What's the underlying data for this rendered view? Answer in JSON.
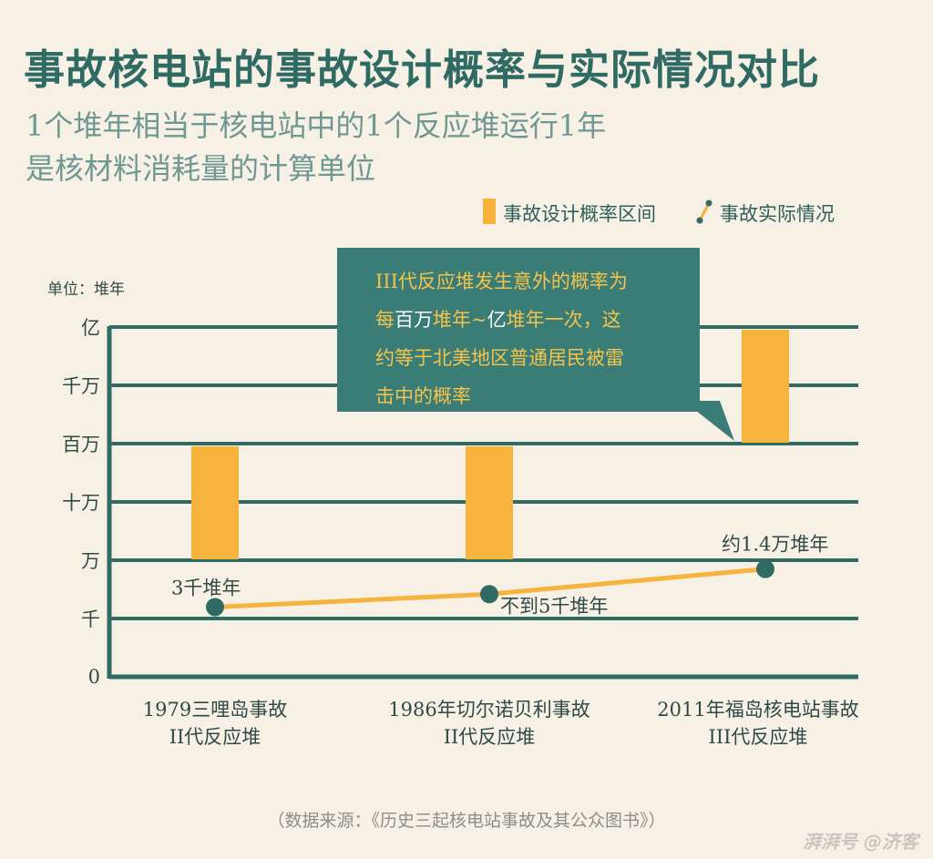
{
  "title": "事故核电站的事故设计概率与实际情况对比",
  "subtitle_line1": "1个堆年相当于核电站中的1个反应堆运行1年",
  "subtitle_line2": "是核材料消耗量的计算单位",
  "legend": {
    "design_range": "事故设计概率区间",
    "actual": "事故实际情况"
  },
  "unit_label": "单位：堆年",
  "callout": {
    "p1": "III代反应堆发生意外的概率为",
    "p2a": "每",
    "p2b": "百万",
    "p2c": "堆年~",
    "p2d": "亿",
    "p2e": "堆年一次，这",
    "p3": "约等于北美地区普通居民被雷",
    "p4": "击中的概率"
  },
  "source": "（数据来源：《历史三起核电站事故及其公众图书》）",
  "watermark": "湃湃号 @济客",
  "colors": {
    "background": "#f7f1e5",
    "grid": "#2f6a63",
    "bar": "#f6b33e",
    "line": "#f6b33e",
    "point": "#2f6a63",
    "callout_bg": "#3a7c76"
  },
  "chart_data": {
    "type": "bar",
    "ylabel": "单位：堆年",
    "y_scale": "log",
    "y_ticks": [
      "0",
      "千",
      "万",
      "十万",
      "百万",
      "千万",
      "亿"
    ],
    "categories": [
      [
        "1979三哩岛事故",
        "II代反应堆"
      ],
      [
        "1986年切尔诺贝利事故",
        "II代反应堆"
      ],
      [
        "2011年福岛核电站事故",
        "III代反应堆"
      ]
    ],
    "series": [
      {
        "name": "事故设计概率区间",
        "type": "range-bar",
        "values": [
          [
            10000,
            1000000
          ],
          [
            10000,
            1000000
          ],
          [
            1000000,
            100000000
          ]
        ]
      },
      {
        "name": "事故实际情况",
        "type": "line",
        "values": [
          3000,
          5000,
          14000
        ],
        "labels": [
          "3千堆年",
          "不到5千堆年",
          "约1.4万堆年"
        ]
      }
    ]
  }
}
